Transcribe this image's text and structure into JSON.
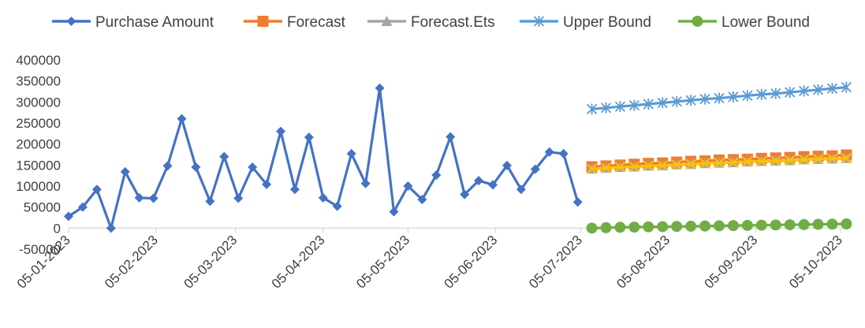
{
  "chart_data": {
    "type": "line",
    "title": "",
    "xlabel": "",
    "ylabel": "",
    "ylim": [
      -50000,
      400000
    ],
    "y_ticks": [
      -50000,
      0,
      50000,
      100000,
      150000,
      200000,
      250000,
      300000,
      350000,
      400000
    ],
    "y_tick_labels": [
      "-50000",
      "0",
      "50000",
      "100000",
      "150000",
      "200000",
      "250000",
      "300000",
      "350000",
      "400000"
    ],
    "x_axis_type": "date",
    "x_range": [
      "2023-01-05",
      "2023-10-08"
    ],
    "x_ticks": [
      "2023-01-05",
      "2023-02-05",
      "2023-03-05",
      "2023-04-05",
      "2023-05-05",
      "2023-06-05",
      "2023-07-05",
      "2023-08-05",
      "2023-09-05",
      "2023-10-05"
    ],
    "x_tick_labels": [
      "05-01-2023",
      "05-02-2023",
      "05-03-2023",
      "05-04-2023",
      "05-05-2023",
      "05-06-2023",
      "05-07-2023",
      "05-08-2023",
      "05-09-2023",
      "05-10-2023"
    ],
    "grid": false,
    "legend_position": "top",
    "series": [
      {
        "name": "Purchase Amount",
        "color": "#4472C4",
        "marker": "diamond",
        "x": [
          "2023-01-05",
          "2023-01-10",
          "2023-01-15",
          "2023-01-20",
          "2023-01-25",
          "2023-01-30",
          "2023-02-04",
          "2023-02-09",
          "2023-02-14",
          "2023-02-19",
          "2023-02-24",
          "2023-03-01",
          "2023-03-06",
          "2023-03-11",
          "2023-03-16",
          "2023-03-21",
          "2023-03-26",
          "2023-03-31",
          "2023-04-05",
          "2023-04-10",
          "2023-04-15",
          "2023-04-20",
          "2023-04-25",
          "2023-04-30",
          "2023-05-05",
          "2023-05-10",
          "2023-05-15",
          "2023-05-20",
          "2023-05-25",
          "2023-05-30",
          "2023-06-04",
          "2023-06-09",
          "2023-06-14",
          "2023-06-19",
          "2023-06-24",
          "2023-06-29",
          "2023-07-04",
          "2023-07-09"
        ],
        "y": [
          28000,
          50000,
          92000,
          0,
          134000,
          72000,
          71000,
          148000,
          260000,
          145000,
          64000,
          170000,
          71000,
          145000,
          104000,
          230000,
          92000,
          216000,
          72000,
          52000,
          177000,
          106000,
          333000,
          39000,
          100000,
          68000,
          126000,
          217000,
          80000,
          113000,
          103000,
          149000,
          92000,
          140000,
          181000,
          177000,
          62000,
          null
        ]
      },
      {
        "name": "Forecast",
        "color": "#ED7D31",
        "marker": "square",
        "x": [
          "2023-07-09",
          "2023-07-14",
          "2023-07-19",
          "2023-07-24",
          "2023-07-29",
          "2023-08-03",
          "2023-08-08",
          "2023-08-13",
          "2023-08-18",
          "2023-08-23",
          "2023-08-28",
          "2023-09-02",
          "2023-09-07",
          "2023-09-12",
          "2023-09-17",
          "2023-09-22",
          "2023-09-27",
          "2023-10-02",
          "2023-10-07"
        ],
        "y": [
          146000,
          148000,
          150000,
          152000,
          154000,
          155000,
          157000,
          159000,
          160000,
          162000,
          163000,
          164000,
          166000,
          167000,
          168000,
          170000,
          171000,
          172000,
          174000
        ]
      },
      {
        "name": "Forecast.Ets",
        "color": "#A5A5A5",
        "marker": "triangle",
        "x": [
          "2023-07-09",
          "2023-07-14",
          "2023-07-19",
          "2023-07-24",
          "2023-07-29",
          "2023-08-03",
          "2023-08-08",
          "2023-08-13",
          "2023-08-18",
          "2023-08-23",
          "2023-08-28",
          "2023-09-02",
          "2023-09-07",
          "2023-09-12",
          "2023-09-17",
          "2023-09-22",
          "2023-09-27",
          "2023-10-02",
          "2023-10-07"
        ],
        "y": [
          141000,
          143000,
          145000,
          146000,
          148000,
          149000,
          151000,
          152000,
          154000,
          155000,
          156000,
          158000,
          159000,
          160000,
          161000,
          163000,
          164000,
          165000,
          166000
        ]
      },
      {
        "name": "",
        "color": "#FFC000",
        "marker": "x",
        "x": [
          "2023-07-09",
          "2023-07-14",
          "2023-07-19",
          "2023-07-24",
          "2023-07-29",
          "2023-08-03",
          "2023-08-08",
          "2023-08-13",
          "2023-08-18",
          "2023-08-23",
          "2023-08-28",
          "2023-09-02",
          "2023-09-07",
          "2023-09-12",
          "2023-09-17",
          "2023-09-22",
          "2023-09-27",
          "2023-10-02",
          "2023-10-07"
        ],
        "y": [
          141000,
          143000,
          145000,
          146000,
          148000,
          149000,
          151000,
          152000,
          154000,
          155000,
          156000,
          158000,
          159000,
          160000,
          161000,
          163000,
          164000,
          165000,
          166000
        ]
      },
      {
        "name": "Upper Bound",
        "color": "#5B9BD5",
        "marker": "asterisk",
        "x": [
          "2023-07-09",
          "2023-07-14",
          "2023-07-19",
          "2023-07-24",
          "2023-07-29",
          "2023-08-03",
          "2023-08-08",
          "2023-08-13",
          "2023-08-18",
          "2023-08-23",
          "2023-08-28",
          "2023-09-02",
          "2023-09-07",
          "2023-09-12",
          "2023-09-17",
          "2023-09-22",
          "2023-09-27",
          "2023-10-02",
          "2023-10-07"
        ],
        "y": [
          283000,
          286000,
          289000,
          292000,
          295000,
          298000,
          301000,
          304000,
          307000,
          309000,
          312000,
          315000,
          318000,
          320000,
          323000,
          326000,
          329000,
          332000,
          335000
        ]
      },
      {
        "name": "Lower Bound",
        "color": "#70AD47",
        "marker": "circle",
        "x": [
          "2023-07-09",
          "2023-07-14",
          "2023-07-19",
          "2023-07-24",
          "2023-07-29",
          "2023-08-03",
          "2023-08-08",
          "2023-08-13",
          "2023-08-18",
          "2023-08-23",
          "2023-08-28",
          "2023-09-02",
          "2023-09-07",
          "2023-09-12",
          "2023-09-17",
          "2023-09-22",
          "2023-09-27",
          "2023-10-02",
          "2023-10-07"
        ],
        "y": [
          0,
          1000,
          2000,
          2500,
          3000,
          3500,
          4000,
          4500,
          5000,
          5500,
          6000,
          6500,
          7000,
          7500,
          8000,
          8500,
          9000,
          9500,
          10000
        ]
      }
    ]
  }
}
